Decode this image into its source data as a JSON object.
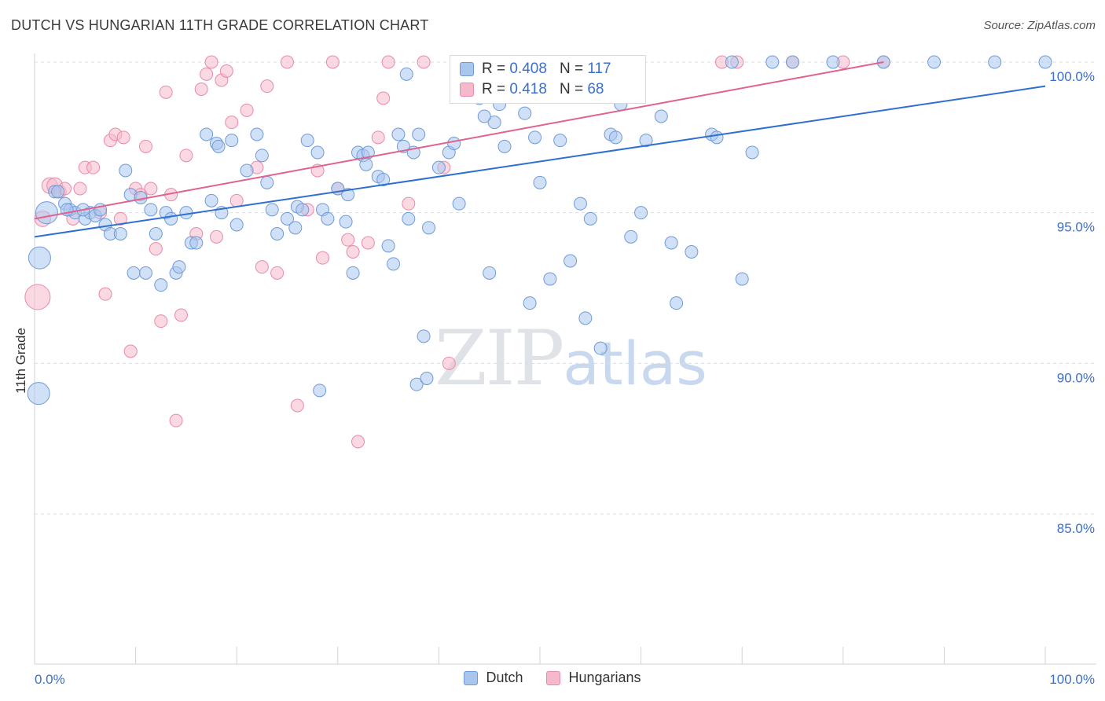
{
  "title": "DUTCH VS HUNGARIAN 11TH GRADE CORRELATION CHART",
  "source": "Source: ZipAtlas.com",
  "watermark": {
    "zip": "ZIP",
    "atlas": "atlas"
  },
  "legend": {
    "rows": [
      {
        "r_label": "R =",
        "r_value": "0.408",
        "n_label": "N =",
        "n_value": "117"
      },
      {
        "r_label": "R =",
        "r_value": "0.418",
        "n_label": "N =",
        "n_value": "68"
      }
    ]
  },
  "bottom_legend": [
    "Dutch",
    "Hungarians"
  ],
  "chart_data": {
    "type": "scatter",
    "title": "DUTCH VS HUNGARIAN 11TH GRADE CORRELATION CHART",
    "xlabel": "",
    "ylabel": "11th Grade",
    "xlim": [
      0,
      100
    ],
    "ylim": [
      80.5,
      100.8
    ],
    "x_tick_labels": [
      "0.0%",
      "100.0%"
    ],
    "y_ticks": [
      85,
      90,
      95,
      100
    ],
    "y_tick_labels": [
      "85.0%",
      "90.0%",
      "95.0%",
      "100.0%"
    ],
    "grid": true,
    "colors": {
      "dutch_fill": "#a9c6ef",
      "dutch_stroke": "#6f9ad8",
      "dutch_line": "#2f6fd0",
      "hung_fill": "#f6b9cc",
      "hung_stroke": "#e98aa8",
      "hung_line": "#e0628e",
      "axis_text": "#3a6fd0"
    },
    "series": [
      {
        "name": "Dutch",
        "R": 0.408,
        "N": 117,
        "trend": {
          "x0": 0,
          "y0": 94.2,
          "x1": 100,
          "y1": 99.2
        },
        "points": [
          [
            1.2,
            95.0,
            14
          ],
          [
            0.5,
            93.5,
            14
          ],
          [
            0.4,
            89.0,
            14
          ],
          [
            2.0,
            95.7,
            8
          ],
          [
            2.3,
            95.7,
            8
          ],
          [
            3.0,
            95.3,
            8
          ],
          [
            3.5,
            95.1,
            8
          ],
          [
            4.0,
            95.0,
            8
          ],
          [
            5.0,
            94.8,
            8
          ],
          [
            5.5,
            95.0,
            8
          ],
          [
            6.0,
            94.9,
            8
          ],
          [
            6.5,
            95.1,
            8
          ],
          [
            7.0,
            94.6,
            8
          ],
          [
            7.5,
            94.3,
            8
          ],
          [
            8.5,
            94.3,
            8
          ],
          [
            9.0,
            96.4,
            8
          ],
          [
            9.5,
            95.6,
            8
          ],
          [
            10.5,
            95.5,
            8
          ],
          [
            11.0,
            93.0,
            8
          ],
          [
            11.5,
            95.1,
            8
          ],
          [
            12.0,
            94.3,
            8
          ],
          [
            13.0,
            95.0,
            8
          ],
          [
            13.5,
            94.8,
            8
          ],
          [
            14.0,
            93.0,
            8
          ],
          [
            15.0,
            95.0,
            8
          ],
          [
            15.5,
            94.0,
            8
          ],
          [
            16.0,
            94.0,
            8
          ],
          [
            17.0,
            97.6,
            8
          ],
          [
            17.5,
            95.4,
            8
          ],
          [
            18.0,
            97.3,
            8
          ],
          [
            18.5,
            95.0,
            8
          ],
          [
            19.5,
            97.4,
            8
          ],
          [
            20.0,
            94.6,
            8
          ],
          [
            21.0,
            96.4,
            8
          ],
          [
            22.0,
            97.6,
            8
          ],
          [
            23.0,
            96.0,
            8
          ],
          [
            23.5,
            95.1,
            8
          ],
          [
            24.0,
            94.3,
            8
          ],
          [
            25.0,
            94.8,
            8
          ],
          [
            26.0,
            95.2,
            8
          ],
          [
            26.5,
            95.1,
            8
          ],
          [
            27.0,
            97.4,
            8
          ],
          [
            28.0,
            97.0,
            8
          ],
          [
            28.5,
            95.1,
            8
          ],
          [
            29.0,
            94.8,
            8
          ],
          [
            30.0,
            95.8,
            8
          ],
          [
            31.0,
            95.6,
            8
          ],
          [
            32.0,
            97.0,
            8
          ],
          [
            32.5,
            96.9,
            8
          ],
          [
            33.0,
            97.0,
            8
          ],
          [
            34.0,
            96.2,
            8
          ],
          [
            34.5,
            96.1,
            8
          ],
          [
            35.0,
            93.9,
            8
          ],
          [
            35.5,
            93.3,
            8
          ],
          [
            36.0,
            97.6,
            8
          ],
          [
            36.5,
            97.2,
            8
          ],
          [
            37.0,
            94.8,
            8
          ],
          [
            37.5,
            97.0,
            8
          ],
          [
            38.0,
            97.6,
            8
          ],
          [
            39.0,
            94.5,
            8
          ],
          [
            40.0,
            96.5,
            8
          ],
          [
            41.0,
            97.0,
            8
          ],
          [
            41.5,
            97.3,
            8
          ],
          [
            42.0,
            95.3,
            8
          ],
          [
            43.0,
            100.0,
            8
          ],
          [
            44.0,
            98.8,
            8
          ],
          [
            45.0,
            93.0,
            8
          ],
          [
            45.5,
            98.0,
            8
          ],
          [
            46.0,
            98.6,
            8
          ],
          [
            46.5,
            97.2,
            8
          ],
          [
            47.0,
            99.0,
            8
          ],
          [
            48.5,
            98.3,
            8
          ],
          [
            49.0,
            92.0,
            8
          ],
          [
            49.5,
            97.5,
            8
          ],
          [
            50.0,
            96.0,
            8
          ],
          [
            51.0,
            92.8,
            8
          ],
          [
            52.0,
            97.4,
            8
          ],
          [
            53.0,
            93.4,
            8
          ],
          [
            54.0,
            95.3,
            8
          ],
          [
            54.5,
            91.5,
            8
          ],
          [
            55.0,
            94.8,
            8
          ],
          [
            56.0,
            90.5,
            8
          ],
          [
            57.0,
            97.6,
            8
          ],
          [
            57.5,
            97.5,
            8
          ],
          [
            58.0,
            98.6,
            8
          ],
          [
            59.0,
            94.2,
            8
          ],
          [
            60.0,
            95.0,
            8
          ],
          [
            60.5,
            97.4,
            8
          ],
          [
            62.0,
            98.2,
            8
          ],
          [
            63.0,
            94.0,
            8
          ],
          [
            63.5,
            92.0,
            8
          ],
          [
            65.0,
            93.7,
            8
          ],
          [
            67.0,
            97.6,
            8
          ],
          [
            67.5,
            97.5,
            8
          ],
          [
            69.0,
            100.0,
            8
          ],
          [
            70.0,
            92.8,
            8
          ],
          [
            71.0,
            97.0,
            8
          ],
          [
            73.0,
            100.0,
            8
          ],
          [
            75.0,
            100.0,
            8
          ],
          [
            79.0,
            100.0,
            8
          ],
          [
            84.0,
            100.0,
            8
          ],
          [
            89.0,
            100.0,
            8
          ],
          [
            95.0,
            100.0,
            8
          ],
          [
            100.0,
            100.0,
            8
          ],
          [
            38.5,
            90.9,
            8
          ],
          [
            37.8,
            89.3,
            8
          ],
          [
            38.8,
            89.5,
            8
          ],
          [
            28.2,
            89.1,
            8
          ],
          [
            9.8,
            93.0,
            8
          ],
          [
            12.5,
            92.6,
            8
          ],
          [
            14.3,
            93.2,
            8
          ],
          [
            31.5,
            93.0,
            8
          ],
          [
            32.8,
            96.6,
            8
          ],
          [
            36.8,
            99.6,
            8
          ],
          [
            44.5,
            98.2,
            8
          ],
          [
            22.5,
            96.9,
            8
          ],
          [
            25.8,
            94.5,
            8
          ],
          [
            30.8,
            94.7,
            8
          ],
          [
            18.2,
            97.2,
            8
          ],
          [
            4.8,
            95.1,
            8
          ],
          [
            3.2,
            95.1,
            8
          ]
        ]
      },
      {
        "name": "Hungarians",
        "R": 0.418,
        "N": 68,
        "trend": {
          "x0": 0,
          "y0": 94.8,
          "x1": 84,
          "y1": 100.0
        },
        "points": [
          [
            0.3,
            92.2,
            16
          ],
          [
            0.8,
            94.8,
            10
          ],
          [
            1.5,
            95.9,
            10
          ],
          [
            2.0,
            95.9,
            10
          ],
          [
            2.5,
            95.7,
            8
          ],
          [
            3.0,
            95.8,
            8
          ],
          [
            3.8,
            94.8,
            8
          ],
          [
            4.5,
            95.8,
            8
          ],
          [
            5.0,
            96.5,
            8
          ],
          [
            5.8,
            96.5,
            8
          ],
          [
            6.5,
            95.0,
            8
          ],
          [
            7.0,
            92.3,
            8
          ],
          [
            7.5,
            97.4,
            8
          ],
          [
            8.0,
            97.6,
            8
          ],
          [
            8.5,
            94.8,
            8
          ],
          [
            8.8,
            97.5,
            8
          ],
          [
            9.5,
            90.4,
            8
          ],
          [
            10.0,
            95.8,
            8
          ],
          [
            10.5,
            95.6,
            8
          ],
          [
            11.0,
            97.2,
            8
          ],
          [
            11.5,
            95.8,
            8
          ],
          [
            12.0,
            93.8,
            8
          ],
          [
            12.5,
            91.4,
            8
          ],
          [
            13.0,
            99.0,
            8
          ],
          [
            13.5,
            95.6,
            8
          ],
          [
            14.0,
            88.1,
            8
          ],
          [
            14.5,
            91.6,
            8
          ],
          [
            15.0,
            96.9,
            8
          ],
          [
            16.0,
            94.3,
            8
          ],
          [
            16.5,
            99.1,
            8
          ],
          [
            17.0,
            99.6,
            8
          ],
          [
            17.5,
            100.0,
            8
          ],
          [
            18.0,
            94.2,
            8
          ],
          [
            18.5,
            99.4,
            8
          ],
          [
            19.0,
            99.7,
            8
          ],
          [
            19.5,
            98.0,
            8
          ],
          [
            20.0,
            95.4,
            8
          ],
          [
            21.0,
            98.4,
            8
          ],
          [
            22.0,
            96.5,
            8
          ],
          [
            22.5,
            93.2,
            8
          ],
          [
            23.0,
            99.2,
            8
          ],
          [
            24.0,
            93.0,
            8
          ],
          [
            25.0,
            100.0,
            8
          ],
          [
            26.0,
            88.6,
            8
          ],
          [
            27.0,
            95.1,
            8
          ],
          [
            28.0,
            96.4,
            8
          ],
          [
            28.5,
            93.5,
            8
          ],
          [
            29.5,
            100.0,
            8
          ],
          [
            30.0,
            95.8,
            8
          ],
          [
            31.0,
            94.1,
            8
          ],
          [
            31.5,
            93.7,
            8
          ],
          [
            32.0,
            87.4,
            8
          ],
          [
            33.0,
            94.0,
            8
          ],
          [
            34.0,
            97.5,
            8
          ],
          [
            34.5,
            98.8,
            8
          ],
          [
            35.0,
            100.0,
            8
          ],
          [
            37.0,
            95.3,
            8
          ],
          [
            38.5,
            100.0,
            8
          ],
          [
            40.5,
            96.5,
            8
          ],
          [
            41.0,
            90.0,
            8
          ],
          [
            49.5,
            100.0,
            8
          ],
          [
            52.0,
            100.0,
            8
          ],
          [
            54.0,
            100.0,
            8
          ],
          [
            68.0,
            100.0,
            8
          ],
          [
            69.5,
            100.0,
            8
          ],
          [
            75.0,
            100.0,
            8
          ],
          [
            80.0,
            100.0,
            8
          ],
          [
            84.0,
            100.0,
            8
          ]
        ]
      }
    ]
  }
}
